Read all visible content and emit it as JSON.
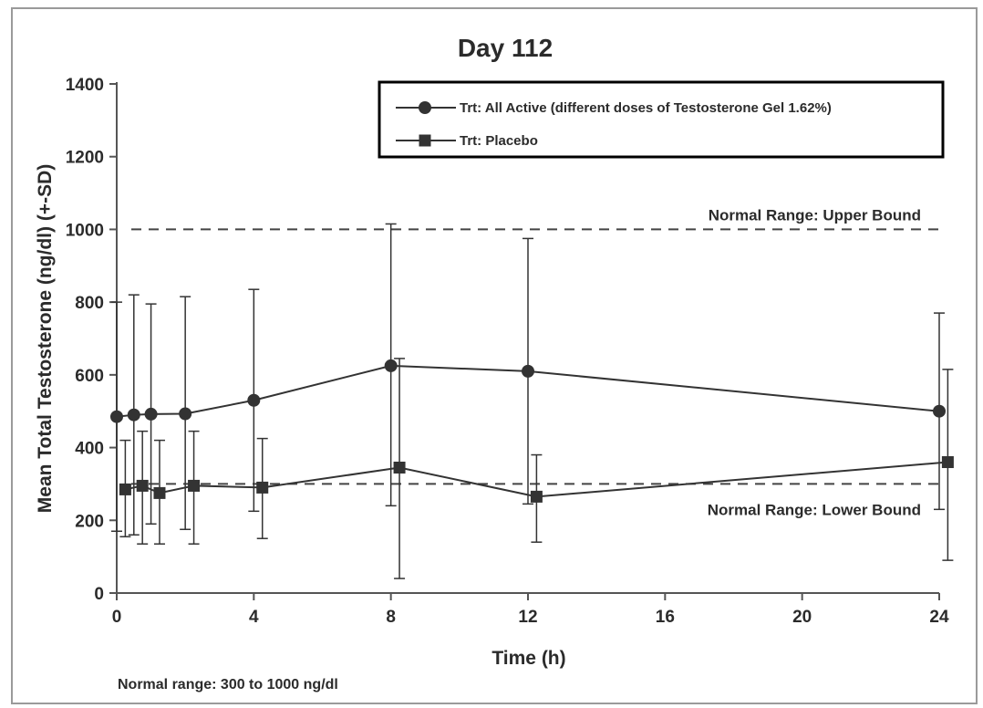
{
  "chart_data": {
    "type": "line",
    "title": "Day 112",
    "xlabel": "Time (h)",
    "ylabel": "Mean Total Testosterone (ng/dl) (+-SD)",
    "xlim": [
      0,
      24
    ],
    "ylim": [
      0,
      1400
    ],
    "x_ticks": [
      0,
      4,
      8,
      12,
      16,
      20,
      24
    ],
    "y_ticks": [
      0,
      200,
      400,
      600,
      800,
      1000,
      1200,
      1400
    ],
    "grid": false,
    "legend_position": "top-right",
    "series": [
      {
        "name": "Trt: All Active (different doses of Testosterone Gel 1.62%)",
        "marker": "circle",
        "x": [
          0,
          0.5,
          1,
          2,
          4,
          8,
          12,
          24
        ],
        "y": [
          485,
          490,
          492,
          493,
          530,
          625,
          610,
          500
        ],
        "sd_upper": [
          800,
          820,
          795,
          815,
          835,
          1015,
          975,
          770
        ],
        "sd_lower": [
          170,
          160,
          190,
          175,
          225,
          240,
          245,
          230
        ]
      },
      {
        "name": "Trt: Placebo",
        "marker": "square",
        "x": [
          0.25,
          0.75,
          1.25,
          2.25,
          4.25,
          8.25,
          12.25,
          24.25
        ],
        "y": [
          285,
          295,
          275,
          295,
          290,
          345,
          265,
          360
        ],
        "sd_upper": [
          420,
          445,
          420,
          445,
          425,
          645,
          380,
          615
        ],
        "sd_lower": [
          155,
          135,
          135,
          135,
          150,
          40,
          140,
          90
        ]
      }
    ],
    "reference_lines": [
      {
        "y": 1000,
        "label": "Normal Range: Upper Bound"
      },
      {
        "y": 300,
        "label": "Normal Range: Lower Bound"
      }
    ],
    "note": "Normal range: 300 to 1000 ng/dl",
    "colors": {
      "line": "#333333",
      "axis": "#555555",
      "legend_border": "#000000"
    }
  }
}
